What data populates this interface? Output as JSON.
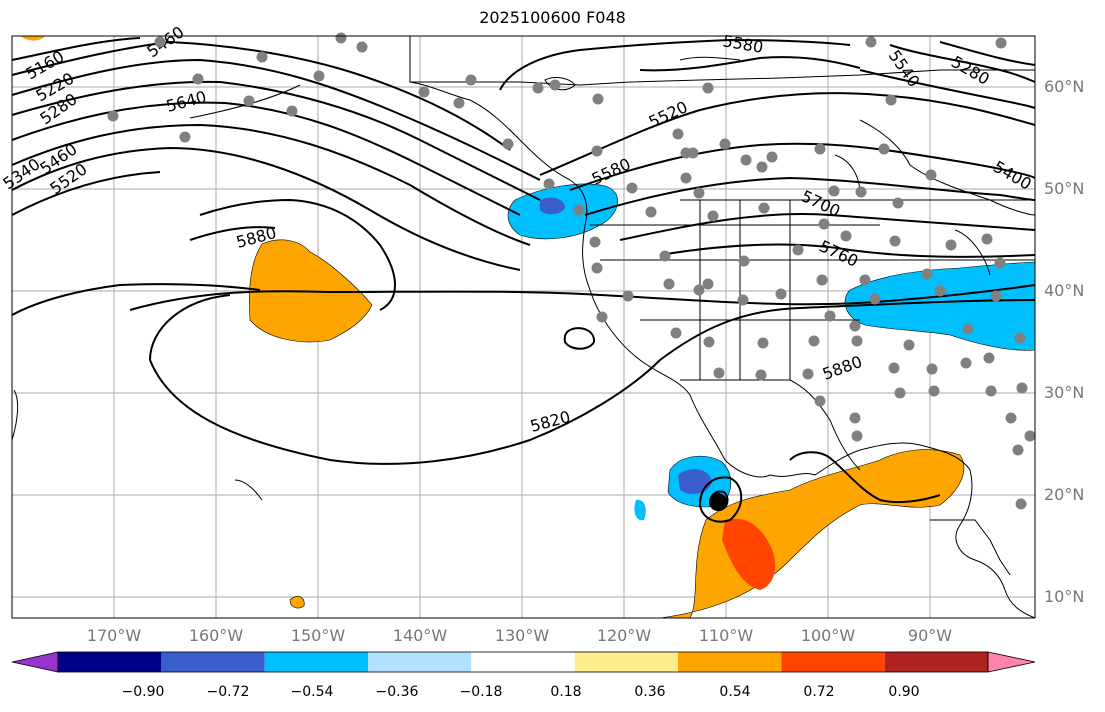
{
  "title": "2025100600 F048",
  "lat_labels": [
    "60°N",
    "50°N",
    "40°N",
    "30°N",
    "20°N",
    "10°N"
  ],
  "lon_labels": [
    "170°W",
    "160°W",
    "150°W",
    "140°W",
    "130°W",
    "120°W",
    "110°W",
    "100°W",
    "90°W"
  ],
  "contour_labels": [
    "5160",
    "5220",
    "5280",
    "5340",
    "5400",
    "5460",
    "5520",
    "5580",
    "5640",
    "5700",
    "5760",
    "5820",
    "5880",
    "5880",
    "5880",
    "5460",
    "5520",
    "5580",
    "5640",
    "5340",
    "5400",
    "5280",
    "5540"
  ],
  "colorbar": {
    "ticks": [
      "−0.90",
      "−0.72",
      "−0.54",
      "−0.36",
      "−0.18",
      "0.18",
      "0.36",
      "0.54",
      "0.72",
      "0.90"
    ],
    "colors": [
      "#9932cc",
      "#00008b",
      "#3a5fcd",
      "#00bfff",
      "#b0e2ff",
      "#ffffff",
      "#ffec8b",
      "#ffa500",
      "#ff4500",
      "#b22222",
      "#ff83aa"
    ]
  },
  "colors": {
    "positive_anomaly": "#ffa500",
    "strong_positive": "#ff4500",
    "negative_anomaly": "#00bfff",
    "strong_negative": "#3a5fcd",
    "station_dots": "#808080"
  }
}
